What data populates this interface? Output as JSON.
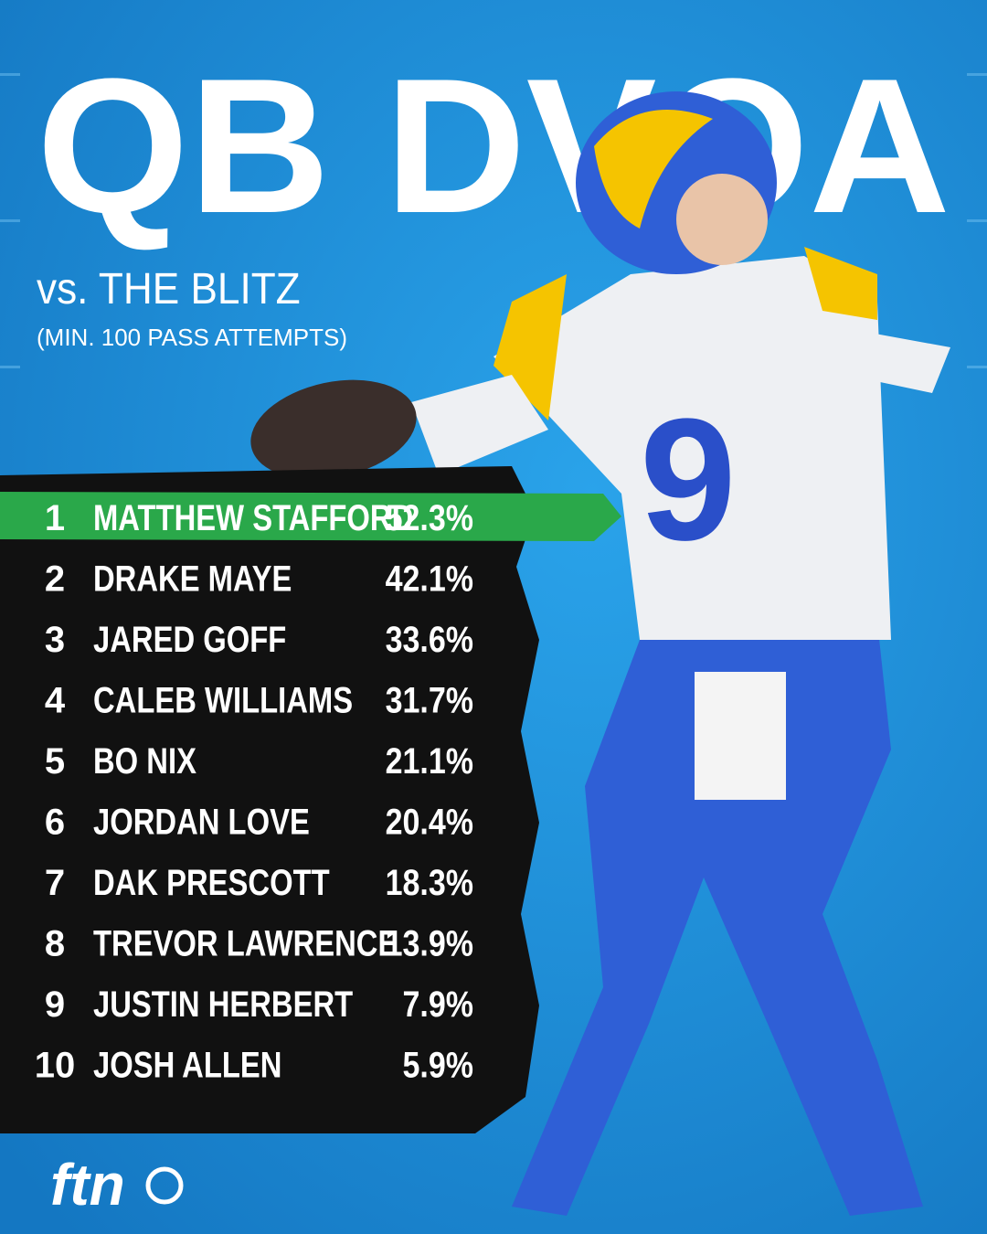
{
  "header": {
    "title": "QB DVOA",
    "subtitle": "vs. THE BLITZ",
    "note": "(MIN. 100 PASS ATTEMPTS)"
  },
  "table": {
    "rows": [
      [
        "1",
        "MATTHEW STAFFORD",
        "52.3%"
      ],
      [
        "2",
        "DRAKE MAYE",
        "42.1%"
      ],
      [
        "3",
        "JARED GOFF",
        "33.6%"
      ],
      [
        "4",
        "CALEB WILLIAMS",
        "31.7%"
      ],
      [
        "5",
        "BO NIX",
        "21.1%"
      ],
      [
        "6",
        "JORDAN LOVE",
        "20.4%"
      ],
      [
        "7",
        "DAK PRESCOTT",
        "18.3%"
      ],
      [
        "8",
        "TREVOR LAWRENCE",
        "13.9%"
      ],
      [
        "9",
        "JUSTIN HERBERT",
        "7.9%"
      ],
      [
        "10",
        "JOSH ALLEN",
        "5.9%"
      ]
    ]
  },
  "footer": {
    "logo": "ftn"
  }
}
